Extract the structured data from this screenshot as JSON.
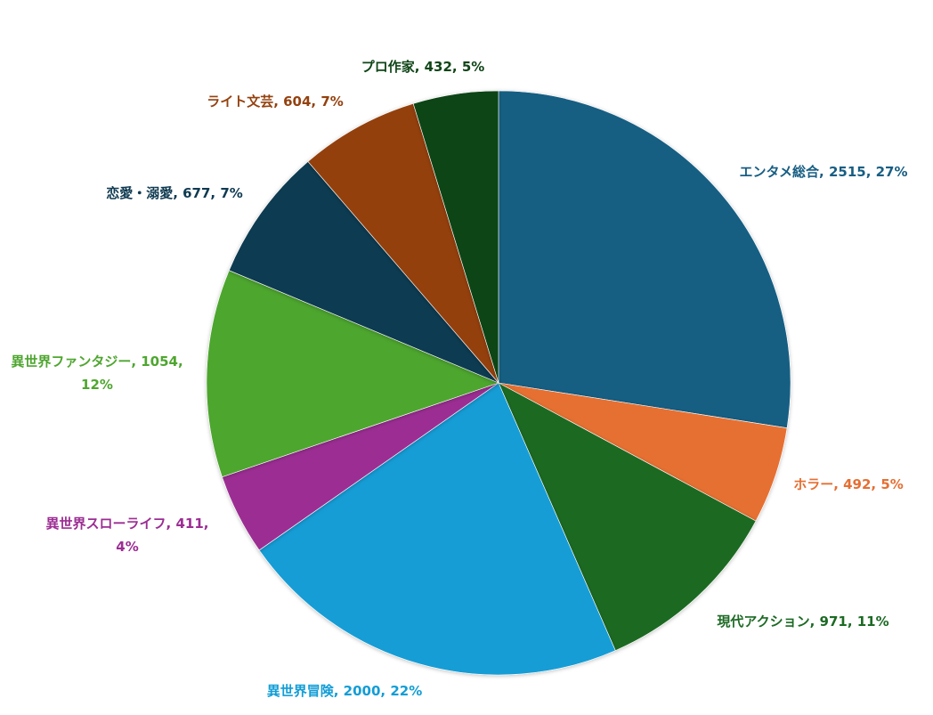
{
  "chart_data": {
    "type": "pie",
    "title": "",
    "slices": [
      {
        "name": "エンタメ総合",
        "value": 2515,
        "percent": "27%",
        "color": "#185E83",
        "label_line2": ""
      },
      {
        "name": "ホラー",
        "value": 492,
        "percent": "5%",
        "color": "#E66F32",
        "label_line2": ""
      },
      {
        "name": "現代アクション",
        "value": 971,
        "percent": "11%",
        "color": "#1C6A24",
        "label_line2": ""
      },
      {
        "name": "異世界冒険",
        "value": 2000,
        "percent": "22%",
        "color": "#129DD6",
        "label_line2": ""
      },
      {
        "name": "異世界スローライフ",
        "value": 411,
        "percent": "4%",
        "color": "#9C2D93",
        "label_line2": "4%"
      },
      {
        "name": "異世界ファンタジー",
        "value": 1054,
        "percent": "12%",
        "color": "#4EA62F",
        "label_line2": "12%"
      },
      {
        "name": "恋愛・溺愛",
        "value": 677,
        "percent": "7%",
        "color": "#0F3A51",
        "label_line2": ""
      },
      {
        "name": "ライト文芸",
        "value": 604,
        "percent": "7%",
        "color": "#94410F",
        "label_line2": ""
      },
      {
        "name": "プロ作家",
        "value": 432,
        "percent": "5%",
        "color": "#0F4517",
        "label_line2": ""
      }
    ],
    "start_angle": "12 o'clock",
    "direction": "clockwise",
    "label_colors": {
      "エンタメ総合": "#185E83",
      "ホラー": "#E66F32",
      "現代アクション": "#1C6A24",
      "異世界冒険": "#129DD6",
      "異世界スローライフ": "#9C2D93",
      "異世界ファンタジー": "#4EA62F",
      "恋愛・溺愛": "#0F3A51",
      "ライト文芸": "#94410F",
      "プロ作家": "#0F4517"
    }
  }
}
